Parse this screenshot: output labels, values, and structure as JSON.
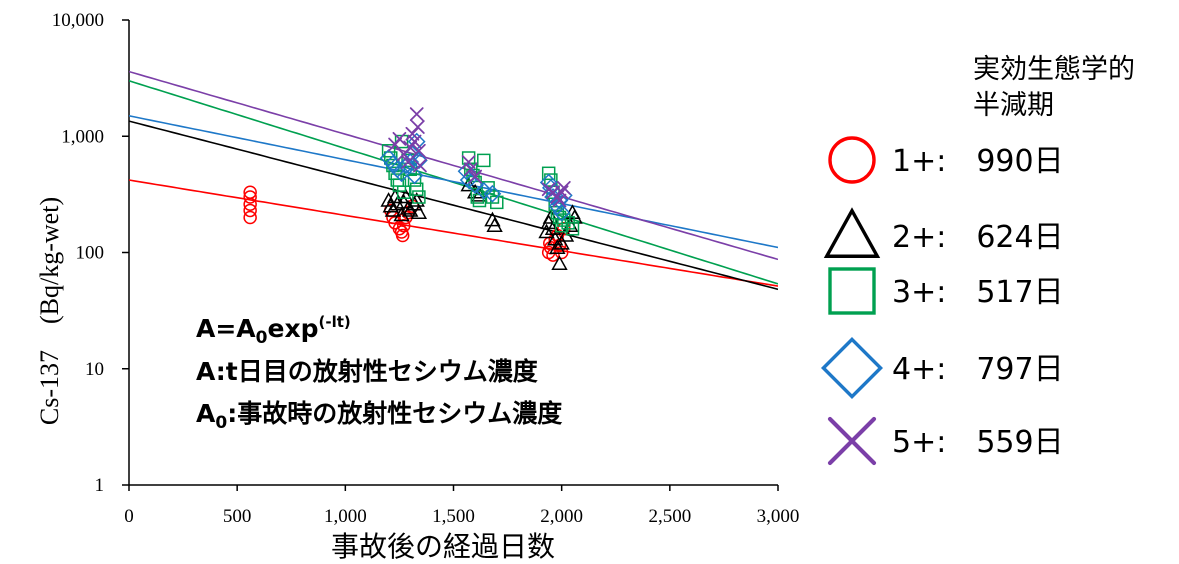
{
  "chart_data": {
    "type": "scatter",
    "xlabel": "事故後の経過日数",
    "ylabel": "Cs-137　(Bq/kg-wet)",
    "xlim": [
      0,
      3000
    ],
    "ylim": [
      1,
      10000
    ],
    "yscale": "log",
    "x_ticks": [
      0,
      500,
      1000,
      1500,
      2000,
      2500,
      3000
    ],
    "x_tick_labels": [
      "0",
      "500",
      "1,000",
      "1,500",
      "2,000",
      "2,500",
      "3,000"
    ],
    "y_ticks": [
      1,
      10,
      100,
      1000,
      10000
    ],
    "y_tick_labels": [
      "1",
      "10",
      "100",
      "1,000",
      "10,000"
    ],
    "grid": false,
    "legend_position": "right",
    "legend_title": "実効生態学的\n半減期",
    "annotations": {
      "line1_main": "A=A",
      "line1_sub": "0",
      "line1_exp": "exp",
      "line1_sup": "(-lt)",
      "line2": "A:t日目の放射性セシウム濃度",
      "line3_main": "A",
      "line3_sub": "0",
      "line3_rest": ":事故時の放射性セシウム濃度"
    },
    "series": [
      {
        "name": "1+:　990日",
        "marker": "circle",
        "color": "#ff0000",
        "trend": {
          "a0": 420,
          "half_life_days": 990
        },
        "points": [
          [
            560,
            330
          ],
          [
            560,
            300
          ],
          [
            560,
            260
          ],
          [
            560,
            230
          ],
          [
            560,
            200
          ],
          [
            1210,
            230
          ],
          [
            1220,
            200
          ],
          [
            1230,
            180
          ],
          [
            1250,
            160
          ],
          [
            1260,
            150
          ],
          [
            1265,
            140
          ],
          [
            1270,
            170
          ],
          [
            1280,
            200
          ],
          [
            1290,
            220
          ],
          [
            1310,
            250
          ],
          [
            1940,
            100
          ],
          [
            1945,
            120
          ],
          [
            1950,
            110
          ],
          [
            1960,
            95
          ],
          [
            1970,
            130
          ],
          [
            1980,
            140
          ],
          [
            1990,
            115
          ],
          [
            2000,
            100
          ],
          [
            2010,
            160
          ]
        ]
      },
      {
        "name": "2+:　624日",
        "marker": "triangle",
        "color": "#000000",
        "trend": {
          "a0": 1350,
          "half_life_days": 624
        },
        "points": [
          [
            1200,
            280
          ],
          [
            1210,
            250
          ],
          [
            1220,
            230
          ],
          [
            1230,
            300
          ],
          [
            1240,
            260
          ],
          [
            1260,
            210
          ],
          [
            1270,
            270
          ],
          [
            1280,
            300
          ],
          [
            1290,
            240
          ],
          [
            1300,
            230
          ],
          [
            1320,
            260
          ],
          [
            1330,
            280
          ],
          [
            1340,
            220
          ],
          [
            1570,
            380
          ],
          [
            1600,
            330
          ],
          [
            1620,
            310
          ],
          [
            1680,
            190
          ],
          [
            1690,
            170
          ],
          [
            1930,
            150
          ],
          [
            1940,
            180
          ],
          [
            1950,
            200
          ],
          [
            1960,
            160
          ],
          [
            1970,
            130
          ],
          [
            1980,
            110
          ],
          [
            1990,
            80
          ],
          [
            2000,
            120
          ],
          [
            2020,
            140
          ],
          [
            2040,
            170
          ],
          [
            2050,
            220
          ],
          [
            2060,
            200
          ]
        ]
      },
      {
        "name": "3+:　517日",
        "marker": "square",
        "color": "#00a050",
        "trend": {
          "a0": 3000,
          "half_life_days": 517
        },
        "points": [
          [
            1200,
            750
          ],
          [
            1210,
            650
          ],
          [
            1220,
            560
          ],
          [
            1230,
            480
          ],
          [
            1240,
            420
          ],
          [
            1250,
            380
          ],
          [
            1260,
            900
          ],
          [
            1270,
            330
          ],
          [
            1290,
            620
          ],
          [
            1300,
            520
          ],
          [
            1320,
            420
          ],
          [
            1330,
            350
          ],
          [
            1340,
            300
          ],
          [
            1570,
            650
          ],
          [
            1580,
            520
          ],
          [
            1590,
            460
          ],
          [
            1600,
            400
          ],
          [
            1610,
            300
          ],
          [
            1620,
            280
          ],
          [
            1640,
            620
          ],
          [
            1660,
            360
          ],
          [
            1680,
            300
          ],
          [
            1700,
            270
          ],
          [
            1940,
            480
          ],
          [
            1950,
            420
          ],
          [
            1960,
            330
          ],
          [
            1970,
            260
          ],
          [
            1980,
            220
          ],
          [
            1990,
            200
          ],
          [
            2000,
            170
          ],
          [
            2010,
            190
          ],
          [
            2030,
            180
          ],
          [
            2050,
            160
          ]
        ]
      },
      {
        "name": "4+:　797日",
        "marker": "diamond",
        "color": "#1e78c8",
        "trend": {
          "a0": 1500,
          "half_life_days": 797
        },
        "points": [
          [
            1200,
            650
          ],
          [
            1220,
            580
          ],
          [
            1240,
            520
          ],
          [
            1260,
            480
          ],
          [
            1280,
            560
          ],
          [
            1300,
            600
          ],
          [
            1310,
            700
          ],
          [
            1320,
            460
          ],
          [
            1330,
            900
          ],
          [
            1340,
            620
          ],
          [
            1560,
            500
          ],
          [
            1570,
            420
          ],
          [
            1600,
            380
          ],
          [
            1640,
            340
          ],
          [
            1680,
            320
          ],
          [
            1940,
            400
          ],
          [
            1950,
            360
          ],
          [
            1960,
            300
          ],
          [
            1980,
            250
          ],
          [
            1990,
            280
          ],
          [
            2000,
            220
          ],
          [
            2010,
            310
          ]
        ]
      },
      {
        "name": "5+:　559日",
        "marker": "cross",
        "color": "#7b3fa8",
        "trend": {
          "a0": 3600,
          "half_life_days": 559
        },
        "points": [
          [
            1230,
            850
          ],
          [
            1250,
            950
          ],
          [
            1270,
            700
          ],
          [
            1290,
            600
          ],
          [
            1300,
            800
          ],
          [
            1310,
            1050
          ],
          [
            1320,
            900
          ],
          [
            1330,
            1550
          ],
          [
            1335,
            1200
          ],
          [
            1340,
            750
          ],
          [
            1345,
            560
          ],
          [
            1570,
            600
          ],
          [
            1580,
            520
          ],
          [
            1600,
            450
          ],
          [
            1940,
            350
          ],
          [
            1960,
            330
          ],
          [
            1980,
            300
          ],
          [
            1990,
            280
          ],
          [
            2000,
            330
          ],
          [
            2010,
            360
          ]
        ]
      }
    ]
  }
}
